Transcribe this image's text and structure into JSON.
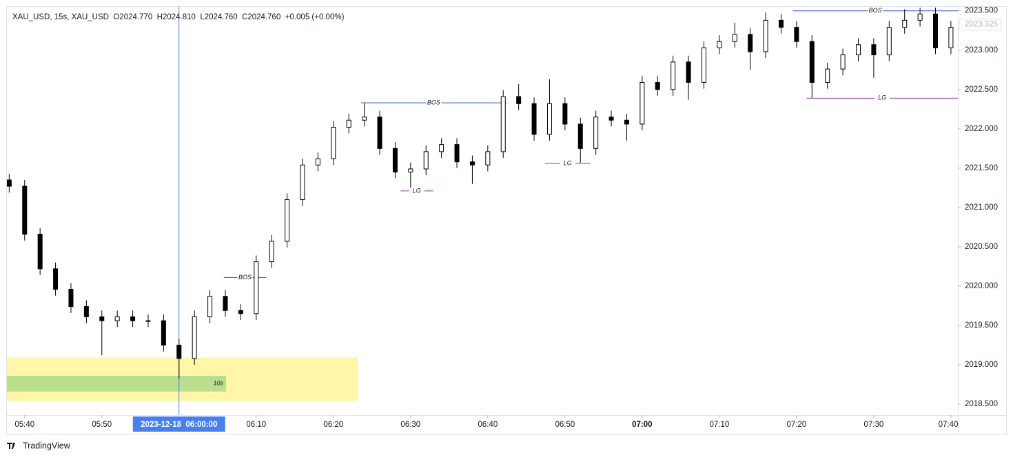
{
  "chart_data": {
    "type": "candlestick",
    "legend_text": "XAU_USD, 15s, XAU_USD  O2024.770  H2024.810  L2024.760  C2024.760  +0.005 (+0.00%)",
    "brand": "TradingView",
    "x": [
      338,
      340,
      342,
      344,
      346,
      348,
      350,
      352,
      354,
      356,
      358,
      360,
      362,
      364,
      366,
      368,
      370,
      372,
      374,
      376,
      378,
      380,
      382,
      384,
      386,
      388,
      390,
      392,
      394,
      396,
      398,
      400,
      402,
      404,
      406,
      408,
      410,
      412,
      414,
      416,
      418,
      420,
      422,
      424,
      426,
      428,
      430,
      432,
      434,
      436,
      438,
      440,
      442,
      444,
      446,
      448,
      450,
      452,
      454,
      456,
      458,
      460
    ],
    "open": [
      2021.35,
      2021.27,
      2020.66,
      2020.22,
      2019.96,
      2019.74,
      2019.61,
      2019.56,
      2019.61,
      2019.56,
      2019.56,
      2019.25,
      2019.08,
      2019.61,
      2019.87,
      2019.69,
      2019.65,
      2020.31,
      2020.57,
      2021.1,
      2021.54,
      2021.62,
      2022.02,
      2022.11,
      2022.15,
      2021.75,
      2021.45,
      2021.49,
      2021.71,
      2021.8,
      2021.58,
      2021.54,
      2021.71,
      2022.41,
      2022.32,
      2021.93,
      2022.32,
      2022.06,
      2021.75,
      2022.15,
      2022.11,
      2022.06,
      2022.59,
      2022.5,
      2022.85,
      2022.59,
      2023.03,
      2023.11,
      2023.2,
      2022.98,
      2023.38,
      2023.29,
      2023.11,
      2022.59,
      2022.76,
      2022.94,
      2023.07,
      2022.94,
      2023.29,
      2023.38,
      2023.46,
      2023.03
    ],
    "high": [
      2021.43,
      2021.35,
      2020.74,
      2020.3,
      2020.04,
      2019.82,
      2019.69,
      2019.69,
      2019.69,
      2019.64,
      2019.64,
      2019.33,
      2019.69,
      2019.95,
      2019.95,
      2019.77,
      2020.39,
      2020.65,
      2021.18,
      2021.62,
      2021.7,
      2022.1,
      2022.19,
      2022.33,
      2022.23,
      2021.83,
      2021.57,
      2021.79,
      2021.88,
      2021.88,
      2021.66,
      2021.79,
      2022.49,
      2022.57,
      2022.4,
      2022.63,
      2022.4,
      2022.14,
      2022.23,
      2022.23,
      2022.19,
      2022.67,
      2022.67,
      2022.93,
      2022.93,
      2023.11,
      2023.19,
      2023.35,
      2023.28,
      2023.48,
      2023.46,
      2023.37,
      2023.19,
      2022.84,
      2023.02,
      2023.15,
      2023.15,
      2023.37,
      2023.52,
      2023.54,
      2023.54,
      2023.37
    ],
    "low": [
      2021.19,
      2020.58,
      2020.14,
      2019.88,
      2019.66,
      2019.53,
      2019.12,
      2019.48,
      2019.48,
      2019.48,
      2019.17,
      2018.82,
      2019.0,
      2019.53,
      2019.61,
      2019.57,
      2019.57,
      2020.23,
      2020.49,
      2021.02,
      2021.46,
      2021.54,
      2021.94,
      2022.03,
      2021.67,
      2021.37,
      2021.25,
      2021.41,
      2021.63,
      2021.5,
      2021.3,
      2021.46,
      2021.63,
      2022.24,
      2021.85,
      2021.85,
      2021.98,
      2021.57,
      2021.67,
      2022.03,
      2021.85,
      2021.98,
      2022.42,
      2022.42,
      2022.37,
      2022.51,
      2022.95,
      2023.03,
      2022.75,
      2022.9,
      2023.21,
      2023.03,
      2022.39,
      2022.51,
      2022.68,
      2022.86,
      2022.65,
      2022.86,
      2023.21,
      2023.3,
      2022.95,
      2022.95
    ],
    "close": [
      2021.27,
      2020.66,
      2020.22,
      2019.96,
      2019.74,
      2019.61,
      2019.56,
      2019.61,
      2019.56,
      2019.56,
      2019.25,
      2019.08,
      2019.61,
      2019.87,
      2019.69,
      2019.65,
      2020.31,
      2020.57,
      2021.1,
      2021.54,
      2021.62,
      2022.02,
      2022.11,
      2022.15,
      2021.75,
      2021.45,
      2021.49,
      2021.71,
      2021.8,
      2021.58,
      2021.54,
      2021.71,
      2022.41,
      2022.32,
      2021.93,
      2022.32,
      2022.06,
      2021.75,
      2022.15,
      2022.11,
      2022.06,
      2022.59,
      2022.5,
      2022.85,
      2022.59,
      2023.03,
      2023.11,
      2023.2,
      2022.98,
      2023.38,
      2023.29,
      2023.11,
      2022.59,
      2022.76,
      2022.94,
      2023.07,
      2022.94,
      2023.29,
      2023.38,
      2023.46,
      2023.03,
      2023.29
    ],
    "up_color": "#ffffff",
    "down_color": "#000000",
    "wick_color": "#000000",
    "xlim": [
      337.7,
      460.9
    ],
    "xticks": [
      {
        "value": 340,
        "label": "05:40"
      },
      {
        "value": 350,
        "label": "05:50"
      },
      {
        "value": 370,
        "label": "06:10"
      },
      {
        "value": 380,
        "label": "06:20"
      },
      {
        "value": 390,
        "label": "06:30"
      },
      {
        "value": 400,
        "label": "06:40"
      },
      {
        "value": 410,
        "label": "06:50"
      },
      {
        "value": 420,
        "label": "07:00"
      },
      {
        "value": 430,
        "label": "07:10"
      },
      {
        "value": 440,
        "label": "07:20"
      },
      {
        "value": 450,
        "label": "07:30"
      },
      {
        "value": 460,
        "label": "07:40"
      }
    ],
    "ylim": [
      2018.36,
      2023.55
    ],
    "yticks": [
      {
        "value": 2018.5,
        "label": "2018.500"
      },
      {
        "value": 2019,
        "label": "2019.000"
      },
      {
        "value": 2019.5,
        "label": "2019.500"
      },
      {
        "value": 2020,
        "label": "2020.000"
      },
      {
        "value": 2020.5,
        "label": "2020.500"
      },
      {
        "value": 2021,
        "label": "2021.000"
      },
      {
        "value": 2021.5,
        "label": "2021.500"
      },
      {
        "value": 2022,
        "label": "2022.000"
      },
      {
        "value": 2022.5,
        "label": "2022.500"
      },
      {
        "value": 2023,
        "label": "2023.000"
      },
      {
        "value": 2023.5,
        "label": "2023.500"
      }
    ],
    "last_price": 2023.325,
    "crosshair": {
      "value": 360,
      "label": "2023-12-18  06:00:00",
      "color": "#2962ff"
    },
    "zones": [
      {
        "top": 2019.09,
        "bottom": 2018.54,
        "start": 337.7,
        "end": 383.2,
        "color": "#fff59d"
      },
      {
        "top": 2018.86,
        "bottom": 2018.66,
        "start": 337.7,
        "end": 366.1,
        "color": "#b5dc8d",
        "label": "10s"
      }
    ],
    "annotations": [
      {
        "text": "BOS",
        "price": 2020.11,
        "start": 365.8,
        "end": 371.3,
        "color": "#2952cc"
      },
      {
        "text": "BOS",
        "price": 2022.33,
        "start": 383.6,
        "end": 402.4,
        "color": "#2952cc"
      },
      {
        "text": "BOS",
        "price": 2023.5,
        "start": 439.5,
        "end": 460.9,
        "color": "#2952cc"
      },
      {
        "text": "LG",
        "price": 2021.21,
        "start": 388.7,
        "end": 392.9,
        "color": "#9c27b0"
      },
      {
        "text": "LG",
        "price": 2021.56,
        "start": 407.4,
        "end": 413.3,
        "color": "#9c27b0"
      },
      {
        "text": "LG",
        "price": 2022.39,
        "start": 441.3,
        "end": 460.9,
        "color": "#9c27b0"
      }
    ]
  }
}
